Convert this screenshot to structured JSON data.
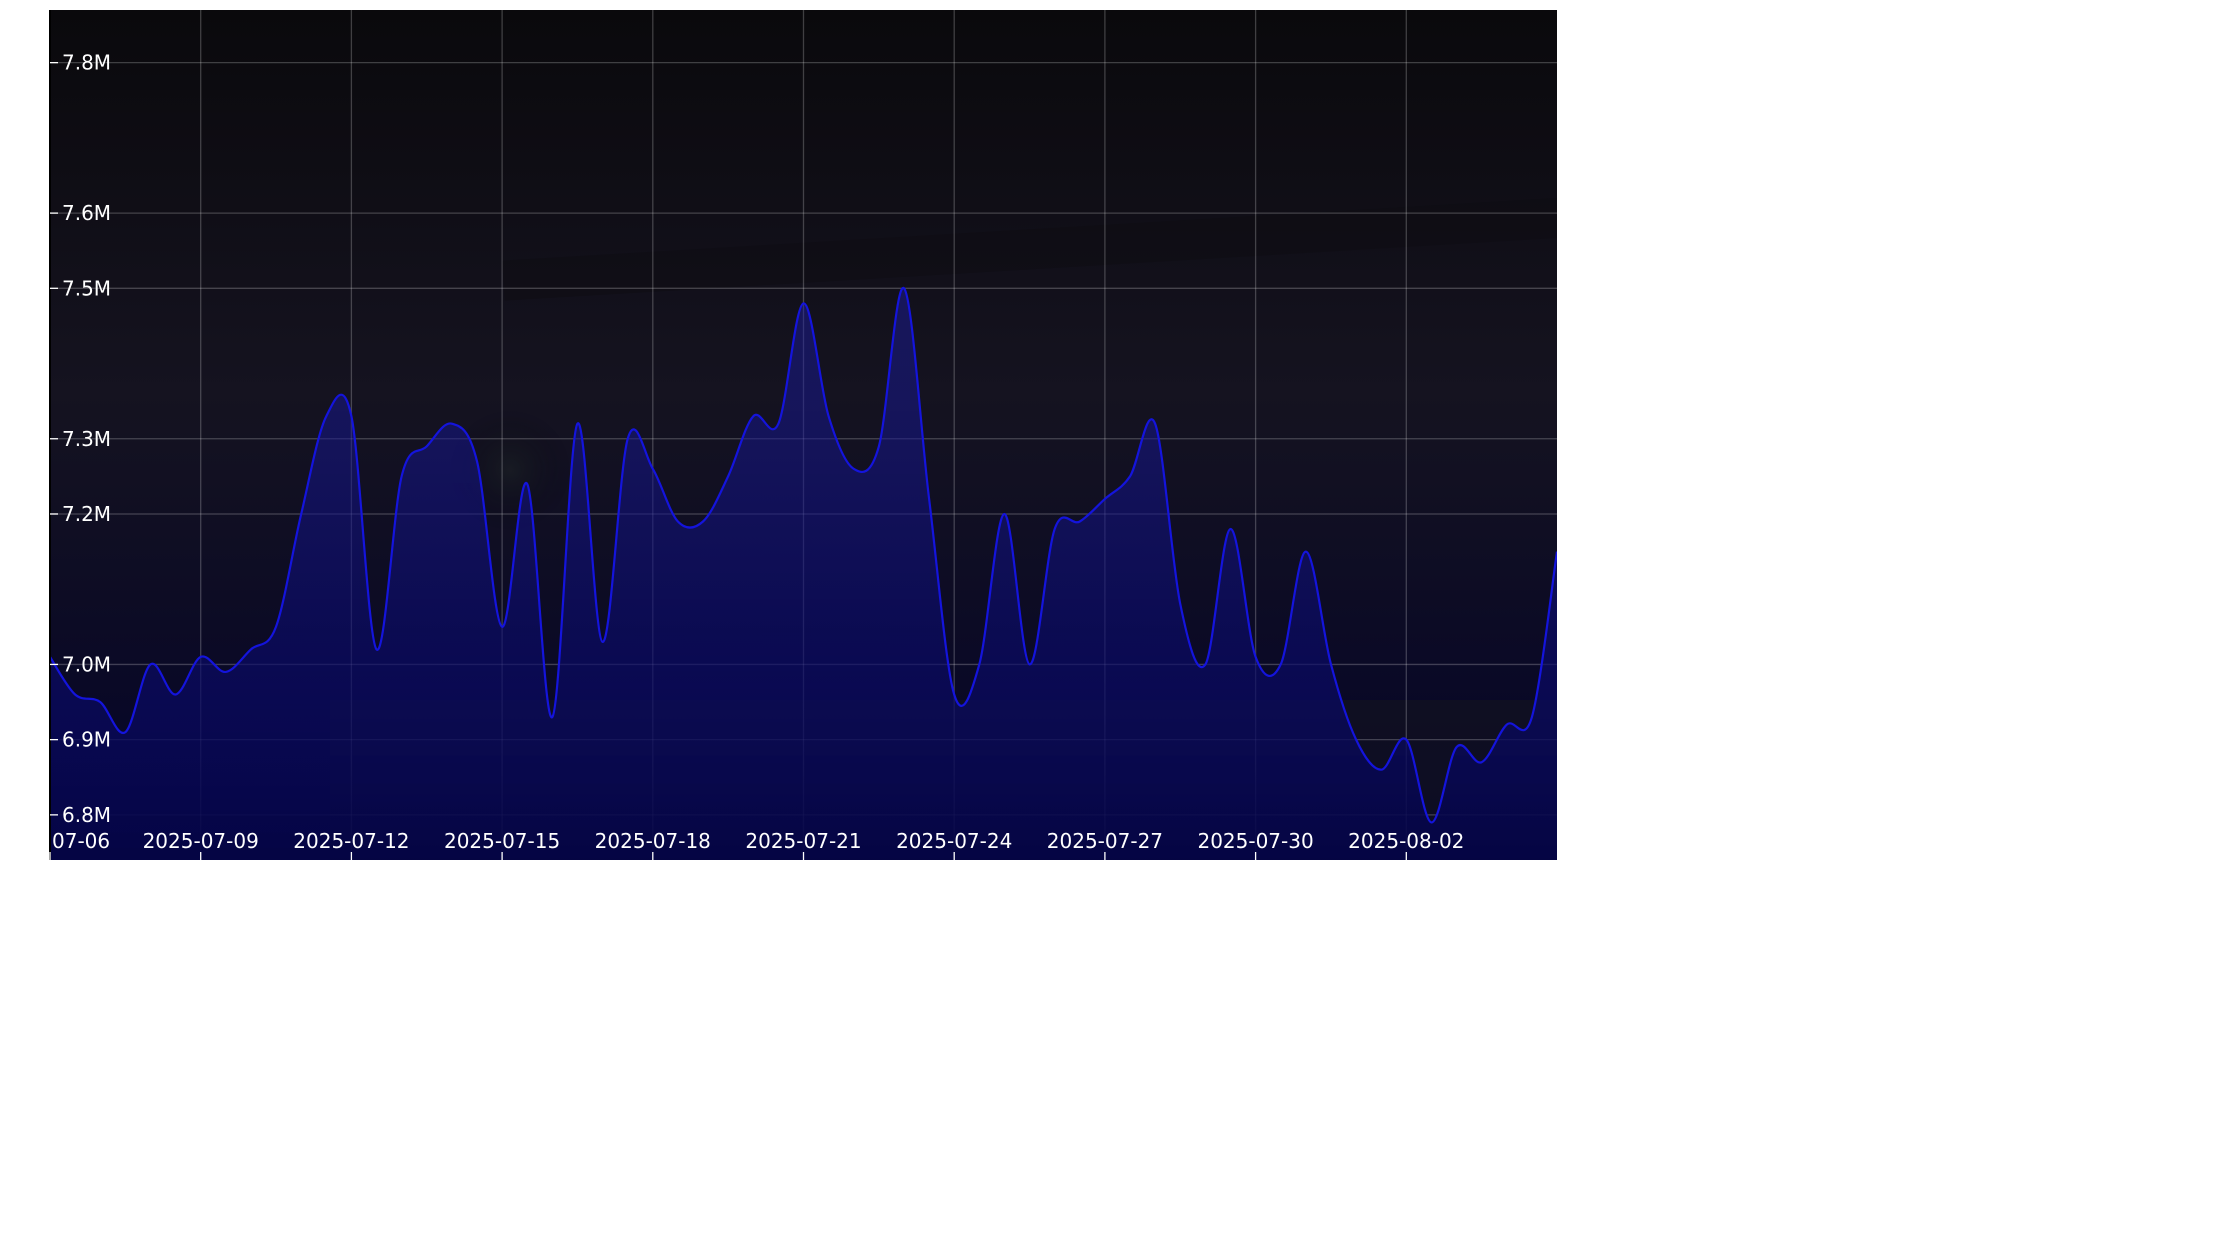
{
  "chart_data": {
    "type": "area",
    "title": "",
    "xlabel": "",
    "ylabel": "",
    "x_ticks": [
      "07-06",
      "2025-07-09",
      "2025-07-12",
      "2025-07-15",
      "2025-07-18",
      "2025-07-21",
      "2025-07-24",
      "2025-07-27",
      "2025-07-30",
      "2025-08-02"
    ],
    "y_ticks": [
      "6.8M",
      "6.9M",
      "7.0M",
      "7.2M",
      "7.3M",
      "7.5M",
      "7.6M",
      "7.8M"
    ],
    "y_tick_values": [
      6800000,
      6900000,
      7000000,
      7200000,
      7300000,
      7500000,
      7600000,
      7800000
    ],
    "ylim": [
      6740000,
      7870000
    ],
    "xlim": [
      "2025-07-06",
      "2025-08-05T00:00"
    ],
    "grid": true,
    "background": "dark fantasy artwork, darkened",
    "colors": {
      "line": "#1414dc",
      "fill_top": "#1a1aa0",
      "fill_bottom": "#04043a",
      "plot_bg": "#0c0c12",
      "text": "#ffffff"
    },
    "series": [
      {
        "x": [
          "2025-07-06",
          "2025-07-06T12:00",
          "2025-07-07",
          "2025-07-07T12:00",
          "2025-07-08",
          "2025-07-08T12:00",
          "2025-07-09",
          "2025-07-09T12:00",
          "2025-07-10",
          "2025-07-10T12:00",
          "2025-07-11",
          "2025-07-11T12:00",
          "2025-07-12",
          "2025-07-12T12:00",
          "2025-07-13",
          "2025-07-13T12:00",
          "2025-07-14",
          "2025-07-14T12:00",
          "2025-07-15",
          "2025-07-15T12:00",
          "2025-07-16",
          "2025-07-16T12:00",
          "2025-07-17",
          "2025-07-17T12:00",
          "2025-07-18",
          "2025-07-18T12:00",
          "2025-07-19",
          "2025-07-19T12:00",
          "2025-07-20",
          "2025-07-20T12:00",
          "2025-07-21",
          "2025-07-21T12:00",
          "2025-07-22",
          "2025-07-22T12:00",
          "2025-07-23",
          "2025-07-23T12:00",
          "2025-07-24",
          "2025-07-24T12:00",
          "2025-07-25",
          "2025-07-25T12:00",
          "2025-07-26",
          "2025-07-26T12:00",
          "2025-07-27",
          "2025-07-27T12:00",
          "2025-07-28",
          "2025-07-28T12:00",
          "2025-07-29",
          "2025-07-29T12:00",
          "2025-07-30",
          "2025-07-30T12:00",
          "2025-07-31",
          "2025-07-31T12:00",
          "2025-08-01",
          "2025-08-01T12:00",
          "2025-08-02",
          "2025-08-02T12:00",
          "2025-08-03",
          "2025-08-03T12:00",
          "2025-08-04",
          "2025-08-04T12:00",
          "2025-08-05T00:00"
        ],
        "values": [
          7010000,
          6960000,
          6950000,
          6910000,
          7000000,
          6960000,
          7010000,
          6990000,
          7020000,
          7050000,
          7200000,
          7330000,
          7330000,
          7020000,
          7250000,
          7290000,
          7320000,
          7270000,
          7050000,
          7240000,
          6930000,
          7320000,
          7030000,
          7300000,
          7260000,
          7190000,
          7190000,
          7250000,
          7330000,
          7320000,
          7480000,
          7330000,
          7260000,
          7290000,
          7500000,
          7220000,
          6960000,
          7000000,
          7200000,
          7000000,
          7180000,
          7190000,
          7220000,
          7250000,
          7320000,
          7080000,
          7000000,
          7180000,
          7010000,
          7000000,
          7150000,
          7000000,
          6900000,
          6860000,
          6900000,
          6790000,
          6890000,
          6870000,
          6920000,
          6930000,
          7150000
        ]
      }
    ]
  }
}
